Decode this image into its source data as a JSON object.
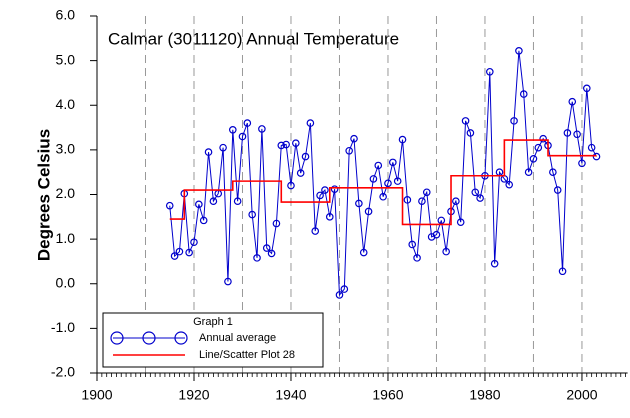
{
  "chart_data": {
    "type": "line",
    "title": "Calmar (3011120) Annual Temperature",
    "y_label": "Degrees Celsius",
    "legend_title": "Graph 1",
    "legend": "lower left",
    "xlim": [
      1900,
      2009
    ],
    "ylim": [
      -2,
      6
    ],
    "xticks": [
      1900,
      1920,
      1940,
      1960,
      1980,
      2000
    ],
    "x_minor_step": 1,
    "xgrid": [
      1910,
      1920,
      1930,
      1940,
      1950,
      1960,
      1970,
      1980,
      1990,
      2000
    ],
    "yticks": [
      {
        "value": 6,
        "label": "6.0"
      },
      {
        "value": 5,
        "label": "5.0"
      },
      {
        "value": 4,
        "label": "4.0"
      },
      {
        "value": 3,
        "label": "3.0"
      },
      {
        "value": 2,
        "label": "2.0"
      },
      {
        "value": 1,
        "label": "1.0"
      },
      {
        "value": 0,
        "label": "0.0"
      },
      {
        "value": -1,
        "label": "-1.0"
      },
      {
        "value": -2,
        "label": "-2.0"
      }
    ],
    "series": [
      {
        "name": "Annual average",
        "color": "#0000cc",
        "markers": true,
        "x": [
          1915,
          1916,
          1917,
          1918,
          1919,
          1920,
          1921,
          1922,
          1923,
          1924,
          1925,
          1926,
          1927,
          1928,
          1929,
          1930,
          1931,
          1932,
          1933,
          1934,
          1935,
          1936,
          1937,
          1938,
          1939,
          1940,
          1941,
          1942,
          1943,
          1944,
          1945,
          1946,
          1947,
          1948,
          1949,
          1950,
          1951,
          1952,
          1953,
          1954,
          1955,
          1956,
          1957,
          1958,
          1959,
          1960,
          1961,
          1962,
          1963,
          1964,
          1965,
          1966,
          1967,
          1968,
          1969,
          1970,
          1971,
          1972,
          1973,
          1974,
          1975,
          1976,
          1977,
          1978,
          1979,
          1980,
          1981,
          1982,
          1983,
          1984,
          1985,
          1986,
          1987,
          1988,
          1989,
          1990,
          1991,
          1992,
          1993,
          1994,
          1995,
          1996,
          1997,
          1998,
          1999,
          2000,
          2001,
          2002,
          2003
        ],
        "values": [
          1.75,
          0.62,
          0.72,
          2.02,
          0.7,
          0.93,
          1.78,
          1.42,
          2.95,
          1.85,
          2.02,
          3.05,
          0.05,
          3.45,
          1.85,
          3.3,
          3.6,
          1.55,
          0.58,
          3.47,
          0.8,
          0.68,
          1.35,
          3.1,
          3.12,
          2.2,
          3.15,
          2.48,
          2.85,
          3.6,
          1.18,
          1.98,
          2.1,
          1.5,
          2.12,
          -0.25,
          -0.12,
          2.98,
          3.25,
          1.8,
          0.7,
          1.62,
          2.35,
          2.65,
          1.95,
          2.25,
          2.72,
          2.3,
          3.23,
          1.88,
          0.88,
          0.58,
          1.85,
          2.05,
          1.05,
          1.1,
          1.42,
          0.72,
          1.62,
          1.85,
          1.38,
          3.65,
          3.38,
          2.05,
          1.92,
          2.42,
          4.75,
          0.45,
          2.5,
          2.35,
          2.22,
          3.65,
          5.22,
          4.25,
          2.5,
          2.8,
          3.05,
          3.25,
          3.1,
          2.5,
          2.1,
          0.28,
          3.38,
          4.08,
          3.35,
          2.7,
          4.38,
          3.05,
          2.85
        ]
      },
      {
        "name": "Line/Scatter Plot 28",
        "color": "#ff0000",
        "markers": false,
        "x": [
          1915,
          1918,
          1918,
          1928,
          1928,
          1938,
          1938,
          1948,
          1948,
          1963,
          1963,
          1973,
          1973,
          1984,
          1984,
          1993,
          1993,
          2003
        ],
        "values": [
          1.45,
          1.45,
          2.1,
          2.1,
          2.3,
          2.3,
          1.83,
          1.83,
          2.15,
          2.15,
          1.33,
          1.33,
          2.42,
          2.42,
          3.22,
          3.22,
          2.87,
          2.87
        ]
      }
    ]
  }
}
